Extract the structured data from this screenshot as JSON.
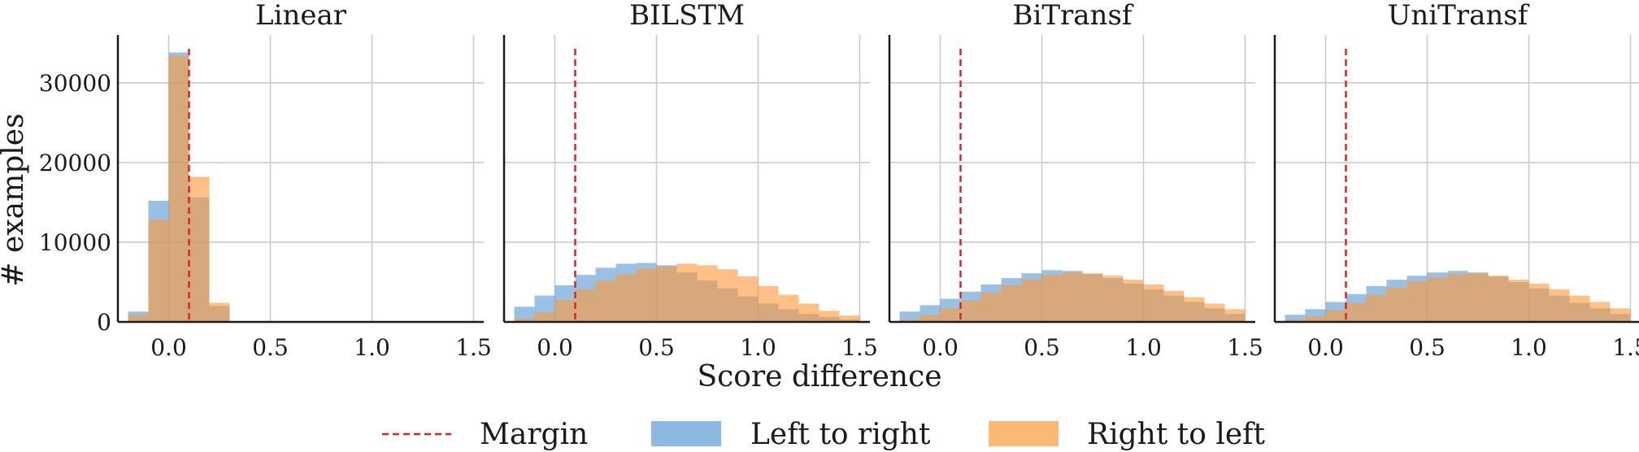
{
  "chart_data": [
    {
      "type": "bar",
      "title": "Linear",
      "xlim": [
        -0.25,
        1.55
      ],
      "ylim": [
        0,
        36000
      ],
      "xticks": [
        0.0,
        0.5,
        1.0,
        1.5
      ],
      "xtick_labels": [
        "0.0",
        "0.5",
        "1.0",
        "1.5"
      ],
      "yticks": [
        0,
        10000,
        20000,
        30000
      ],
      "ytick_labels": [
        "0",
        "10000",
        "20000",
        "30000"
      ],
      "bin_start": -0.2,
      "bin_width": 0.1,
      "series": [
        {
          "name": "Left to right",
          "values": [
            1300,
            15200,
            33800,
            15600,
            2000
          ]
        },
        {
          "name": "Right to left",
          "values": [
            900,
            12800,
            33400,
            18200,
            2400
          ]
        }
      ],
      "grid": true
    },
    {
      "type": "bar",
      "title": "BILSTM",
      "xlim": [
        -0.25,
        1.55
      ],
      "ylim": [
        0,
        36000
      ],
      "xticks": [
        0.0,
        0.5,
        1.0,
        1.5
      ],
      "xtick_labels": [
        "0.0",
        "0.5",
        "1.0",
        "1.5"
      ],
      "yticks": [
        0,
        10000,
        20000,
        30000
      ],
      "bin_start": -0.2,
      "bin_width": 0.1,
      "series": [
        {
          "name": "Left to right",
          "values": [
            1900,
            3300,
            4600,
            5900,
            6800,
            7300,
            7400,
            7100,
            6200,
            5200,
            4200,
            3200,
            2300,
            1600,
            1000,
            600,
            300
          ]
        },
        {
          "name": "Right to left",
          "values": [
            400,
            1200,
            2800,
            4100,
            5200,
            6000,
            6700,
            7000,
            7300,
            7100,
            6600,
            5700,
            4500,
            3400,
            2300,
            1400,
            800
          ]
        }
      ],
      "grid": true
    },
    {
      "type": "bar",
      "title": "BiTransf",
      "xlim": [
        -0.25,
        1.55
      ],
      "ylim": [
        0,
        36000
      ],
      "xticks": [
        0.0,
        0.5,
        1.0,
        1.5
      ],
      "xtick_labels": [
        "0.0",
        "0.5",
        "1.0",
        "1.5"
      ],
      "yticks": [
        0,
        10000,
        20000,
        30000
      ],
      "bin_start": -0.2,
      "bin_width": 0.1,
      "series": [
        {
          "name": "Left to right",
          "values": [
            1300,
            2100,
            2900,
            3800,
            4700,
            5500,
            6100,
            6500,
            6400,
            6000,
            5500,
            4800,
            4100,
            3300,
            2500,
            1700,
            1000
          ]
        },
        {
          "name": "Right to left",
          "values": [
            300,
            900,
            1700,
            2700,
            3700,
            4600,
            5300,
            5900,
            6200,
            6100,
            5800,
            5300,
            4700,
            3900,
            3100,
            2300,
            1600
          ]
        }
      ],
      "grid": true
    },
    {
      "type": "bar",
      "title": "UniTransf",
      "xlim": [
        -0.25,
        1.55
      ],
      "ylim": [
        0,
        36000
      ],
      "xticks": [
        0.0,
        0.5,
        1.0,
        1.5
      ],
      "xtick_labels": [
        "0.0",
        "0.5",
        "1.0",
        "1.5"
      ],
      "yticks": [
        0,
        10000,
        20000,
        30000
      ],
      "bin_start": -0.2,
      "bin_width": 0.1,
      "series": [
        {
          "name": "Left to right",
          "values": [
            900,
            1600,
            2500,
            3500,
            4500,
            5300,
            5800,
            6200,
            6400,
            6200,
            5700,
            5000,
            4200,
            3300,
            2400,
            1700,
            1000
          ]
        },
        {
          "name": "Right to left",
          "values": [
            300,
            700,
            1500,
            2400,
            3400,
            4300,
            5100,
            5600,
            6000,
            6100,
            5800,
            5300,
            4800,
            4100,
            3300,
            2500,
            1700
          ]
        }
      ],
      "grid": true
    }
  ],
  "figure": {
    "xlabel": "Score difference",
    "ylabel": "# examples",
    "margin_x": 0.1,
    "legend_position": "bottom",
    "legend": [
      {
        "label": "Margin",
        "kind": "dashed-line"
      },
      {
        "label": "Left to right",
        "kind": "patch"
      },
      {
        "label": "Right to left",
        "kind": "patch"
      }
    ]
  },
  "colors": {
    "left_to_right": "#5b9bd5",
    "right_to_left": "#fd9a3c",
    "margin": "#d62728",
    "grid": "#cccccc",
    "axis": "#1a1a1a"
  }
}
